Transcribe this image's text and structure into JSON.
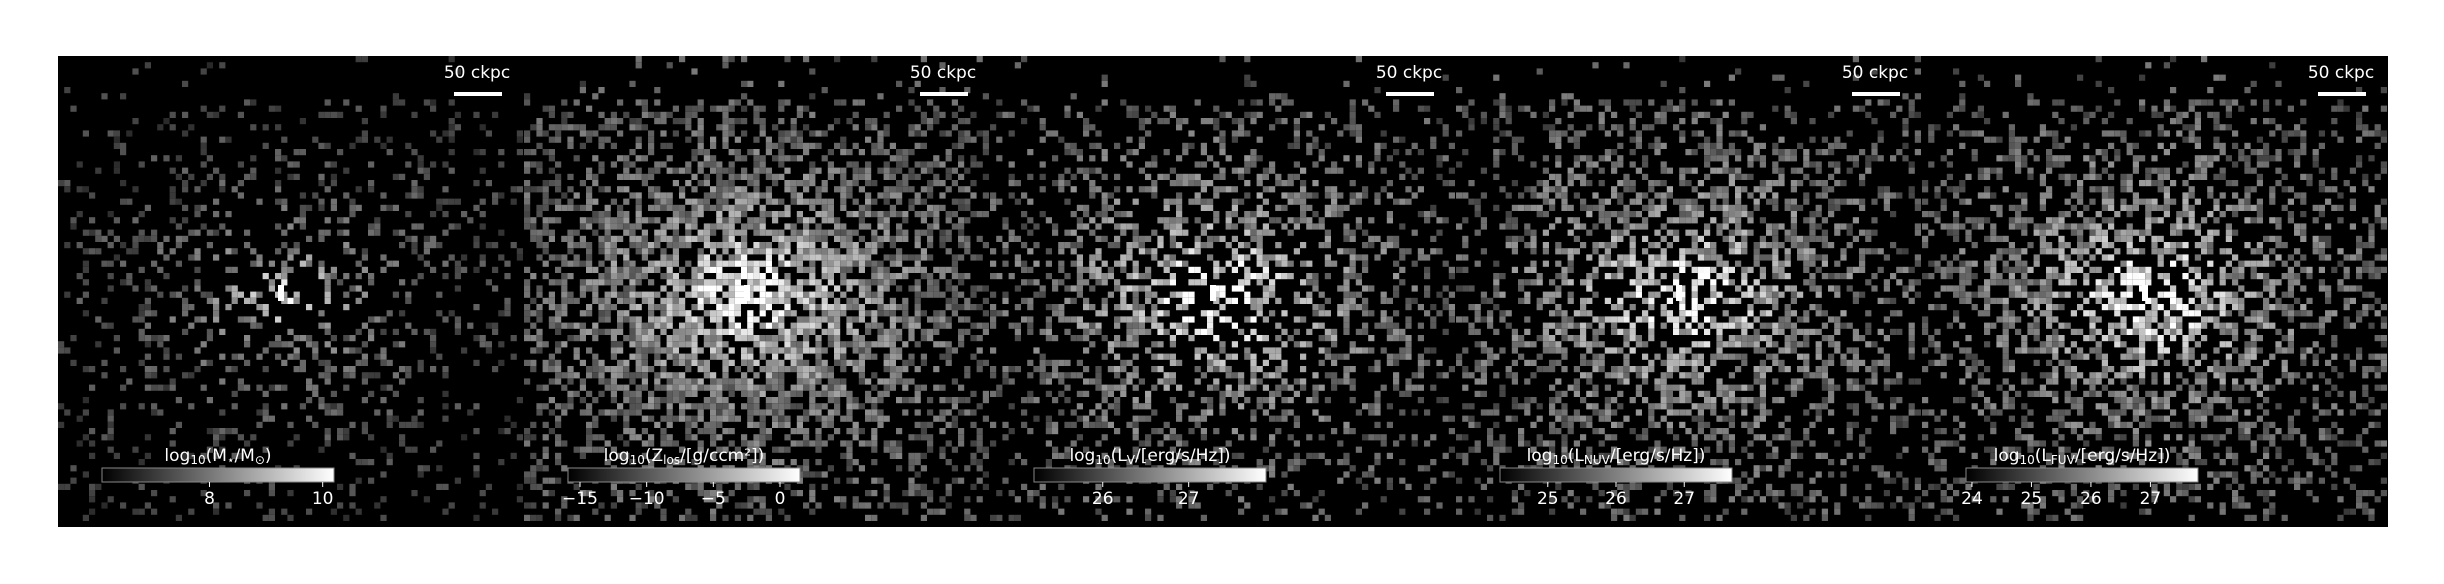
{
  "panels": [
    {
      "scale_label": "50 ckpc",
      "colorbar_label": [
        "log",
        "10",
        "(M",
        "⋆",
        "/M",
        "⊙",
        ")"
      ],
      "clim": [
        6.1,
        10.2
      ],
      "cticks": [
        8,
        10
      ]
    },
    {
      "scale_label": "50 ckpc",
      "colorbar_label": [
        "log",
        "10",
        "(Z",
        "los",
        "/[g/ccm²])"
      ],
      "clim": [
        -15.9,
        1.5
      ],
      "cticks": [
        {
          "value": -15,
          "label": "−15"
        },
        {
          "value": -10,
          "label": "−10"
        },
        {
          "value": -5,
          "label": "−5"
        },
        0
      ]
    },
    {
      "scale_label": "50 ckpc",
      "colorbar_label": [
        "log",
        "10",
        "(L",
        "V",
        "/[erg/s/Hz])"
      ],
      "clim": [
        25.2,
        27.9
      ],
      "cticks": [
        26,
        27
      ]
    },
    {
      "scale_label": "50 ckpc",
      "colorbar_label": [
        "log",
        "10",
        "(L",
        "NUV",
        "/[erg/s/Hz])"
      ],
      "clim": [
        24.3,
        27.7
      ],
      "cticks": [
        25,
        26,
        27
      ]
    },
    {
      "scale_label": "50 ckpc",
      "colorbar_label": [
        "log",
        "10",
        "(L",
        "FUV",
        "/[erg/s/Hz])"
      ],
      "clim": [
        23.9,
        27.8
      ],
      "cticks": [
        24,
        25,
        26,
        27
      ]
    }
  ]
}
